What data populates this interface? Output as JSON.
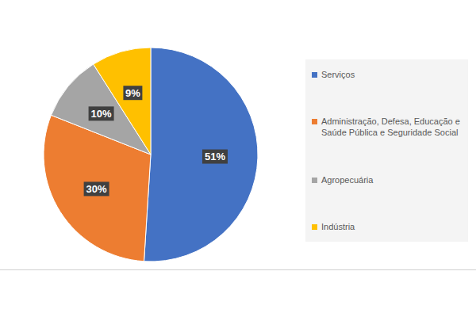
{
  "chart_data": {
    "type": "pie",
    "categories": [
      "Serviços",
      "Administração, Defesa, Educação e Saúde Pública e Seguridade Social",
      "Agropecuária",
      "Indústria"
    ],
    "values": [
      51,
      30,
      10,
      9
    ],
    "value_labels": [
      "51%",
      "30%",
      "10%",
      "9%"
    ],
    "colors": [
      "#4472c4",
      "#ed7d31",
      "#a5a5a5",
      "#ffc000"
    ],
    "legend": "right",
    "data_labels": true
  }
}
